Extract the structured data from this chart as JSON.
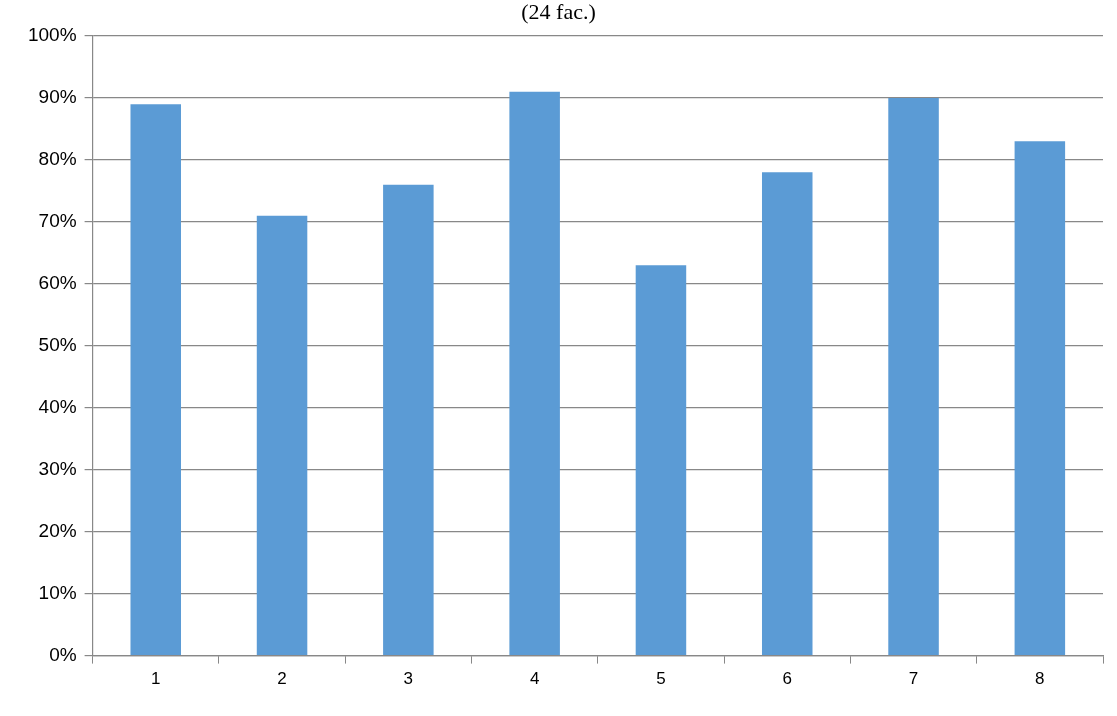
{
  "chart_data": {
    "type": "bar",
    "title": "(24 fac.)",
    "categories": [
      "1",
      "2",
      "3",
      "4",
      "5",
      "6",
      "7",
      "8"
    ],
    "values": [
      89,
      71,
      76,
      91,
      63,
      78,
      90,
      83
    ],
    "color": "#5b9bd5",
    "ylim": [
      0,
      100
    ],
    "yticks": [
      {
        "value": 0,
        "label": "0%"
      },
      {
        "value": 10,
        "label": "10%"
      },
      {
        "value": 20,
        "label": "20%"
      },
      {
        "value": 30,
        "label": "30%"
      },
      {
        "value": 40,
        "label": "40%"
      },
      {
        "value": 50,
        "label": "50%"
      },
      {
        "value": 60,
        "label": "60%"
      },
      {
        "value": 70,
        "label": "70%"
      },
      {
        "value": 80,
        "label": "80%"
      },
      {
        "value": 90,
        "label": "90%"
      },
      {
        "value": 100,
        "label": "100%"
      }
    ],
    "grid": "y"
  }
}
